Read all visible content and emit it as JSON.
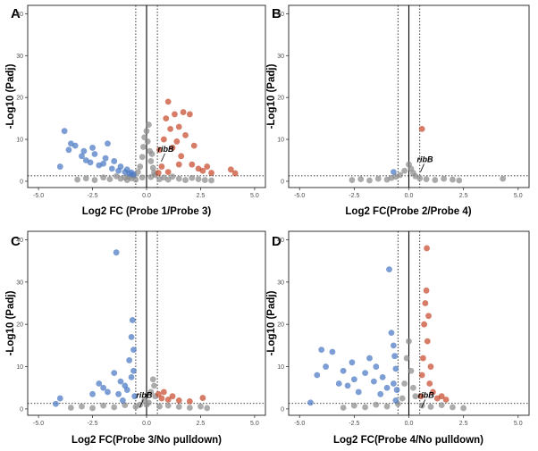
{
  "colors": {
    "down": "#4a78c4",
    "up": "#c84a2c",
    "ns": "#8a8a8a",
    "frame": "#333333"
  },
  "chart_data": [
    {
      "type": "scatter",
      "panel": "A",
      "xlabel": "Log2 FC (Probe 1/Probe 3)",
      "ylabel": "-Log10 (Padj)",
      "xlim": [
        -5.5,
        5.5
      ],
      "ylim": [
        -1.5,
        42
      ],
      "xticks": [
        -5.0,
        -2.5,
        0.0,
        2.5,
        5.0
      ],
      "xtick_labels": [
        "-5.0",
        "-2.5",
        "0.0",
        "2.5",
        "5.0"
      ],
      "yticks": [
        0,
        10,
        20,
        30,
        40
      ],
      "ytick_labels": [
        "0",
        "10",
        "20",
        "30",
        "40"
      ],
      "vlines": [
        -0.5,
        0,
        0.5
      ],
      "hline": 1.3,
      "grid": false,
      "gene_label": {
        "text": "ribB",
        "x": 0.6,
        "y": 4.5
      },
      "ns_points": [
        [
          -3.2,
          0.4
        ],
        [
          -2.8,
          0.7
        ],
        [
          -2.4,
          0.3
        ],
        [
          -2.0,
          0.9
        ],
        [
          -1.7,
          0.5
        ],
        [
          -1.4,
          1.2
        ],
        [
          -1.2,
          0.6
        ],
        [
          -1.0,
          0.9
        ],
        [
          -0.9,
          0.3
        ],
        [
          -0.8,
          1.1
        ],
        [
          -0.7,
          0.7
        ],
        [
          -0.6,
          1.3
        ],
        [
          -0.5,
          0.4
        ],
        [
          -0.4,
          2.2
        ],
        [
          -0.3,
          3.5
        ],
        [
          -0.2,
          5.8
        ],
        [
          -0.15,
          8.2
        ],
        [
          -0.1,
          10.5
        ],
        [
          0.0,
          12.0
        ],
        [
          0.05,
          9.5
        ],
        [
          0.1,
          13.5
        ],
        [
          0.15,
          7.2
        ],
        [
          0.2,
          4.8
        ],
        [
          0.25,
          6.5
        ],
        [
          0.3,
          3.2
        ],
        [
          0.35,
          2.1
        ],
        [
          0.4,
          1.5
        ],
        [
          0.2,
          1.0
        ],
        [
          -0.2,
          0.9
        ],
        [
          0.6,
          0.5
        ],
        [
          0.8,
          0.9
        ],
        [
          1.0,
          0.4
        ],
        [
          1.2,
          1.1
        ],
        [
          1.5,
          0.6
        ],
        [
          1.8,
          0.3
        ],
        [
          2.1,
          0.8
        ],
        [
          2.4,
          0.5
        ],
        [
          2.7,
          0.3
        ],
        [
          3.0,
          0.2
        ]
      ],
      "down_points": [
        [
          -4.0,
          3.5
        ],
        [
          -3.8,
          12.0
        ],
        [
          -3.6,
          7.5
        ],
        [
          -3.5,
          9.0
        ],
        [
          -3.3,
          8.5
        ],
        [
          -3.0,
          6.0
        ],
        [
          -2.9,
          7.2
        ],
        [
          -2.8,
          5.0
        ],
        [
          -2.6,
          4.5
        ],
        [
          -2.5,
          8.0
        ],
        [
          -2.4,
          6.5
        ],
        [
          -2.2,
          3.8
        ],
        [
          -2.0,
          4.2
        ],
        [
          -1.9,
          5.5
        ],
        [
          -1.8,
          9.0
        ],
        [
          -1.6,
          3.0
        ],
        [
          -1.5,
          4.8
        ],
        [
          -1.3,
          2.5
        ],
        [
          -1.2,
          3.5
        ],
        [
          -1.0,
          2.2
        ],
        [
          -0.9,
          2.8
        ],
        [
          -0.8,
          1.8
        ],
        [
          -0.7,
          2.1
        ],
        [
          -0.6,
          1.6
        ]
      ],
      "up_points": [
        [
          0.6,
          7.5
        ],
        [
          0.8,
          10.0
        ],
        [
          0.9,
          15.0
        ],
        [
          1.0,
          19.0
        ],
        [
          1.1,
          12.5
        ],
        [
          1.2,
          8.0
        ],
        [
          1.3,
          16.0
        ],
        [
          1.4,
          9.5
        ],
        [
          1.5,
          13.0
        ],
        [
          1.6,
          6.0
        ],
        [
          1.7,
          16.5
        ],
        [
          1.8,
          11.0
        ],
        [
          2.0,
          16.0
        ],
        [
          2.1,
          4.0
        ],
        [
          2.2,
          8.5
        ],
        [
          2.4,
          3.0
        ],
        [
          2.6,
          2.5
        ],
        [
          2.8,
          3.5
        ],
        [
          3.0,
          2.0
        ],
        [
          3.9,
          2.8
        ],
        [
          4.1,
          1.9
        ],
        [
          0.7,
          3.5
        ],
        [
          1.0,
          2.2
        ],
        [
          1.5,
          4.0
        ],
        [
          0.55,
          2.0
        ]
      ]
    },
    {
      "type": "scatter",
      "panel": "B",
      "xlabel": "Log2 FC(Probe 2/Probe 4)",
      "ylabel": "-Log10 (Padj)",
      "xlim": [
        -5.5,
        5.5
      ],
      "ylim": [
        -1.5,
        42
      ],
      "xticks": [
        -5.0,
        -2.5,
        0.0,
        2.5,
        5.0
      ],
      "xtick_labels": [
        "-5.0",
        "-2.5",
        "0.0",
        "2.5",
        "5.0"
      ],
      "yticks": [
        0,
        10,
        20,
        30,
        40
      ],
      "ytick_labels": [
        "0",
        "10",
        "20",
        "30",
        "40"
      ],
      "vlines": [
        -0.5,
        0,
        0.5
      ],
      "hline": 1.3,
      "grid": false,
      "gene_label": {
        "text": "ribB",
        "x": 0.45,
        "y": 2.0
      },
      "ns_points": [
        [
          -2.6,
          0.3
        ],
        [
          -2.2,
          0.5
        ],
        [
          -1.8,
          0.2
        ],
        [
          -1.4,
          0.6
        ],
        [
          -1.0,
          0.4
        ],
        [
          -0.8,
          0.8
        ],
        [
          -0.6,
          1.1
        ],
        [
          -0.4,
          1.5
        ],
        [
          -0.2,
          2.5
        ],
        [
          0.0,
          4.0
        ],
        [
          0.1,
          3.0
        ],
        [
          0.2,
          2.0
        ],
        [
          0.3,
          1.2
        ],
        [
          0.5,
          0.7
        ],
        [
          0.8,
          0.5
        ],
        [
          1.2,
          0.3
        ],
        [
          1.6,
          0.6
        ],
        [
          2.0,
          0.4
        ],
        [
          2.3,
          0.2
        ],
        [
          4.3,
          0.6
        ]
      ],
      "down_points": [
        [
          -0.7,
          2.2
        ]
      ],
      "up_points": [
        [
          0.6,
          12.5
        ]
      ]
    },
    {
      "type": "scatter",
      "panel": "C",
      "xlabel": "Log2 FC(Probe 3/No pulldown)",
      "ylabel": "-Log10 (Padj)",
      "xlim": [
        -5.5,
        5.5
      ],
      "ylim": [
        -1.5,
        42
      ],
      "xticks": [
        -5.0,
        -2.5,
        0.0,
        2.5,
        5.0
      ],
      "xtick_labels": [
        "-5.0",
        "-2.5",
        "0.0",
        "2.5",
        "5.0"
      ],
      "yticks": [
        0,
        10,
        20,
        30,
        40
      ],
      "ytick_labels": [
        "0",
        "10",
        "20",
        "30",
        "40"
      ],
      "vlines": [
        -0.5,
        0,
        0.5
      ],
      "hline": 1.3,
      "grid": false,
      "gene_label": {
        "text": "ribB",
        "x": -0.4,
        "y": 0.1
      },
      "ns_points": [
        [
          -3.5,
          0.3
        ],
        [
          -3.0,
          0.6
        ],
        [
          -2.5,
          0.2
        ],
        [
          -2.0,
          0.8
        ],
        [
          -1.5,
          0.4
        ],
        [
          -1.0,
          0.9
        ],
        [
          -0.5,
          0.5
        ],
        [
          -0.3,
          1.0
        ],
        [
          -0.1,
          2.0
        ],
        [
          0.0,
          1.0
        ],
        [
          0.1,
          1.5
        ],
        [
          0.2,
          4.0
        ],
        [
          0.3,
          7.0
        ],
        [
          0.35,
          5.5
        ],
        [
          0.4,
          3.0
        ],
        [
          0.6,
          0.6
        ],
        [
          1.0,
          0.8
        ],
        [
          1.5,
          0.5
        ],
        [
          2.0,
          0.3
        ],
        [
          2.5,
          0.6
        ],
        [
          2.8,
          0.2
        ]
      ],
      "down_points": [
        [
          -4.2,
          1.2
        ],
        [
          -4.0,
          2.5
        ],
        [
          -2.5,
          3.5
        ],
        [
          -2.2,
          6.0
        ],
        [
          -2.0,
          5.0
        ],
        [
          -1.8,
          4.0
        ],
        [
          -1.5,
          8.5
        ],
        [
          -1.4,
          37.0
        ],
        [
          -1.3,
          3.5
        ],
        [
          -1.2,
          6.5
        ],
        [
          -1.1,
          2.0
        ],
        [
          -1.0,
          5.5
        ],
        [
          -0.9,
          4.5
        ],
        [
          -0.8,
          11.5
        ],
        [
          -0.7,
          17.0
        ],
        [
          -0.65,
          21.0
        ],
        [
          -0.6,
          14.0
        ],
        [
          -0.6,
          9.0
        ],
        [
          -0.55,
          3.0
        ],
        [
          -0.7,
          7.5
        ]
      ],
      "up_points": [
        [
          0.55,
          3.5
        ],
        [
          0.7,
          2.5
        ],
        [
          0.8,
          4.0
        ],
        [
          1.0,
          2.2
        ],
        [
          1.2,
          3.0
        ],
        [
          1.5,
          2.0
        ],
        [
          2.0,
          1.8
        ],
        [
          2.6,
          2.6
        ]
      ]
    },
    {
      "type": "scatter",
      "panel": "D",
      "xlabel": "Log2 FC(Probe 4/No pulldown)",
      "ylabel": "-Log10 (Padj)",
      "xlim": [
        -5.5,
        5.5
      ],
      "ylim": [
        -1.5,
        42
      ],
      "xticks": [
        -5.0,
        -2.5,
        0.0,
        2.5,
        5.0
      ],
      "xtick_labels": [
        "-5.0",
        "-2.5",
        "0.0",
        "2.5",
        "5.0"
      ],
      "yticks": [
        0,
        10,
        20,
        30,
        40
      ],
      "ytick_labels": [
        "0",
        "10",
        "20",
        "30",
        "40"
      ],
      "vlines": [
        -0.5,
        0,
        0.5
      ],
      "hline": 1.3,
      "grid": false,
      "gene_label": {
        "text": "ribB",
        "x": 0.5,
        "y": 0.1
      },
      "ns_points": [
        [
          -3.0,
          0.3
        ],
        [
          -2.5,
          0.8
        ],
        [
          -2.0,
          0.4
        ],
        [
          -1.5,
          1.0
        ],
        [
          -1.0,
          0.6
        ],
        [
          -0.5,
          1.2
        ],
        [
          -0.3,
          2.5
        ],
        [
          -0.2,
          6.0
        ],
        [
          -0.1,
          12.0
        ],
        [
          0.0,
          16.0
        ],
        [
          0.1,
          9.0
        ],
        [
          0.2,
          5.0
        ],
        [
          0.3,
          3.0
        ],
        [
          0.6,
          0.8
        ],
        [
          1.0,
          0.5
        ],
        [
          1.5,
          0.9
        ],
        [
          2.0,
          0.4
        ],
        [
          2.5,
          0.2
        ]
      ],
      "down_points": [
        [
          -4.5,
          1.5
        ],
        [
          -4.2,
          8.0
        ],
        [
          -4.0,
          14.0
        ],
        [
          -3.8,
          10.0
        ],
        [
          -3.5,
          13.5
        ],
        [
          -3.2,
          6.0
        ],
        [
          -3.0,
          9.0
        ],
        [
          -2.8,
          5.5
        ],
        [
          -2.6,
          11.0
        ],
        [
          -2.5,
          7.0
        ],
        [
          -2.3,
          4.0
        ],
        [
          -2.0,
          8.5
        ],
        [
          -1.8,
          12.0
        ],
        [
          -1.6,
          6.5
        ],
        [
          -1.5,
          10.0
        ],
        [
          -1.3,
          3.5
        ],
        [
          -1.2,
          7.5
        ],
        [
          -1.0,
          5.0
        ],
        [
          -0.9,
          33.0
        ],
        [
          -0.8,
          18.0
        ],
        [
          -0.7,
          15.0
        ],
        [
          -0.65,
          12.5
        ],
        [
          -0.6,
          9.5
        ],
        [
          -0.55,
          4.5
        ],
        [
          -0.7,
          6.0
        ],
        [
          -0.6,
          2.0
        ]
      ],
      "up_points": [
        [
          0.55,
          3.0
        ],
        [
          0.6,
          8.0
        ],
        [
          0.65,
          12.0
        ],
        [
          0.7,
          20.0
        ],
        [
          0.75,
          25.0
        ],
        [
          0.8,
          28.0
        ],
        [
          0.82,
          38.0
        ],
        [
          0.85,
          16.0
        ],
        [
          0.9,
          22.0
        ],
        [
          0.95,
          6.0
        ],
        [
          1.0,
          10.0
        ],
        [
          1.1,
          4.0
        ],
        [
          1.3,
          2.5
        ],
        [
          1.5,
          3.0
        ],
        [
          1.7,
          2.2
        ]
      ]
    }
  ]
}
